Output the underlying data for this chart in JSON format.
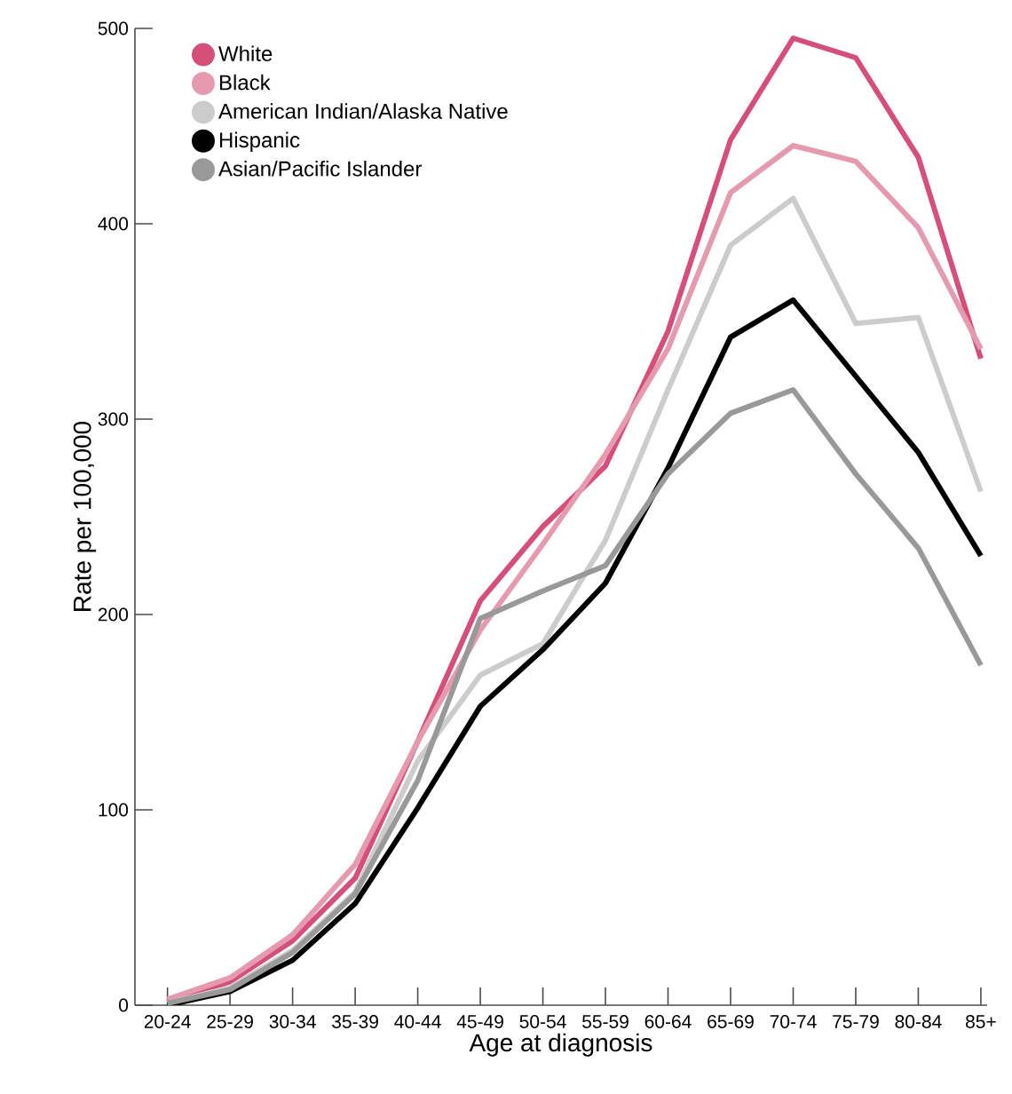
{
  "chart_data": {
    "type": "line",
    "xlabel": "Age at diagnosis",
    "ylabel": "Rate per 100,000",
    "categories": [
      "20-24",
      "25-29",
      "30-34",
      "35-39",
      "40-44",
      "45-49",
      "50-54",
      "55-59",
      "60-64",
      "65-69",
      "70-74",
      "75-79",
      "80-84",
      "85+"
    ],
    "ylim": [
      0,
      500
    ],
    "yticks": [
      0,
      100,
      200,
      300,
      400,
      500
    ],
    "legend": "top left",
    "grid": false,
    "series": [
      {
        "name": "White",
        "color": "#d64f7a",
        "values": [
          2,
          12,
          33,
          65,
          135,
          207,
          245,
          276,
          345,
          443,
          495,
          485,
          434,
          331
        ]
      },
      {
        "name": "Black",
        "color": "#e59ab0",
        "values": [
          3,
          14,
          36,
          72,
          135,
          192,
          236,
          282,
          336,
          416,
          440,
          432,
          398,
          336
        ]
      },
      {
        "name": "American Indian/Alaska Native",
        "color": "#cccccc",
        "values": [
          1,
          9,
          28,
          58,
          125,
          169,
          185,
          238,
          315,
          389,
          413,
          349,
          352,
          263
        ]
      },
      {
        "name": "Hispanic",
        "color": "#000000",
        "values": [
          0,
          7,
          23,
          52,
          101,
          153,
          182,
          216,
          275,
          342,
          361,
          322,
          283,
          230
        ]
      },
      {
        "name": "Asian/Pacific Islander",
        "color": "#999999",
        "values": [
          1,
          8,
          27,
          57,
          115,
          198,
          212,
          225,
          272,
          303,
          315,
          272,
          234,
          174
        ]
      }
    ]
  }
}
